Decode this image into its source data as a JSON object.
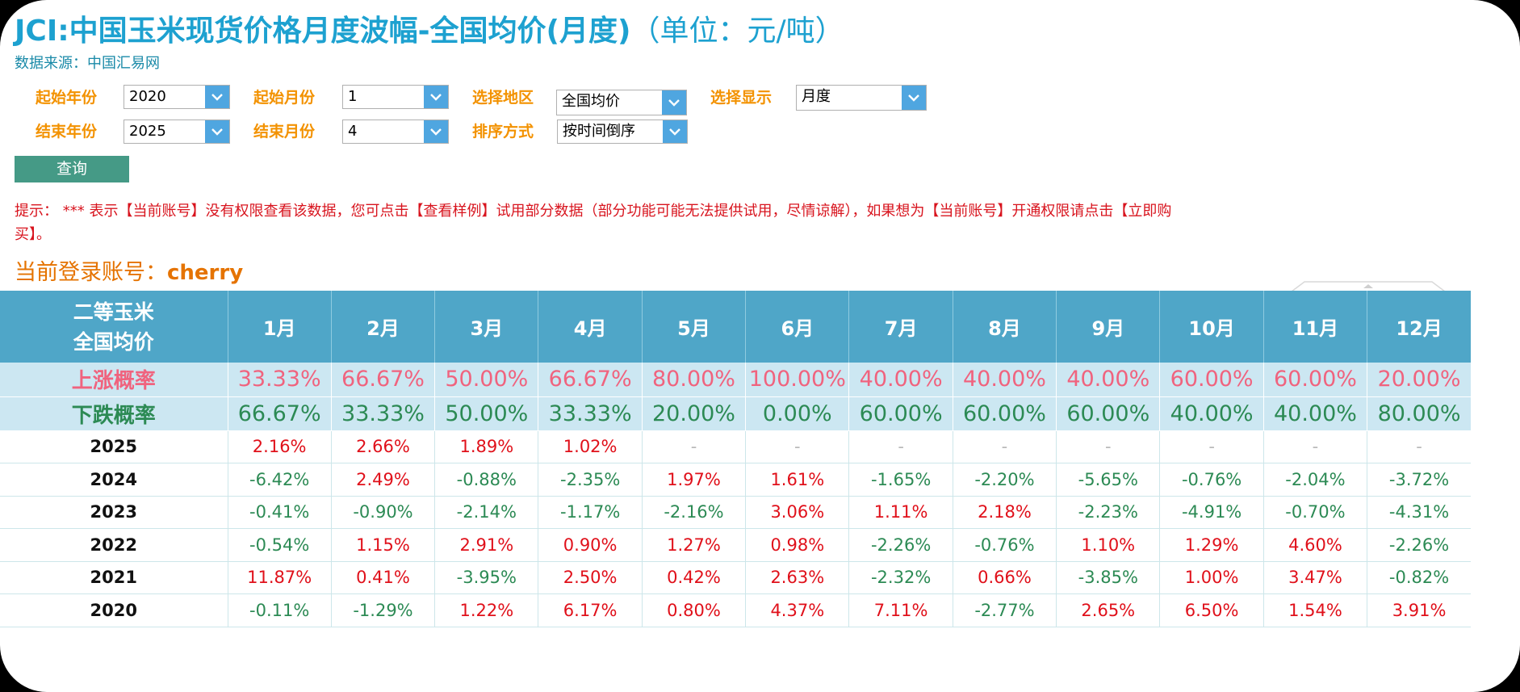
{
  "header": {
    "brand": "JCI:",
    "title": "中国玉米现货价格月度波幅-全国均价(月度)",
    "unit": "（单位：元/吨）",
    "source": "数据来源：中国汇易网"
  },
  "filters": {
    "start_year": {
      "label": "起始年份",
      "value": "2020"
    },
    "start_month": {
      "label": "起始月份",
      "value": "1"
    },
    "region": {
      "label": "选择地区",
      "value": "全国均价"
    },
    "display": {
      "label": "选择显示",
      "value": "月度"
    },
    "end_year": {
      "label": "结束年份",
      "value": "2025"
    },
    "end_month": {
      "label": "结束月份",
      "value": "4"
    },
    "sort": {
      "label": "排序方式",
      "value": "按时间倒序"
    }
  },
  "query_label": "查询",
  "hint": "提示：  *** 表示【当前账号】没有权限查看该数据，您可点击【查看样例】试用部分数据（部分功能可能无法提供试用，尽情谅解），如果想为【当前账号】开通权限请点击【立即购买】。",
  "account": {
    "label": "当前登录账号：",
    "user": "cherry"
  },
  "table": {
    "corner_line1": "二等玉米",
    "corner_line2": "全国均价",
    "months": [
      "1月",
      "2月",
      "3月",
      "4月",
      "5月",
      "6月",
      "7月",
      "8月",
      "9月",
      "10月",
      "11月",
      "12月"
    ],
    "up": {
      "label": "上涨概率",
      "values": [
        "33.33%",
        "66.67%",
        "50.00%",
        "66.67%",
        "80.00%",
        "100.00%",
        "40.00%",
        "40.00%",
        "40.00%",
        "60.00%",
        "60.00%",
        "20.00%"
      ]
    },
    "down": {
      "label": "下跌概率",
      "values": [
        "66.67%",
        "33.33%",
        "50.00%",
        "33.33%",
        "20.00%",
        "0.00%",
        "60.00%",
        "60.00%",
        "60.00%",
        "40.00%",
        "40.00%",
        "80.00%"
      ]
    },
    "rows": [
      {
        "year": "2025",
        "values": [
          "2.16%",
          "2.66%",
          "1.89%",
          "1.02%",
          "-",
          "-",
          "-",
          "-",
          "-",
          "-",
          "-",
          "-"
        ]
      },
      {
        "year": "2024",
        "values": [
          "-6.42%",
          "2.49%",
          "-0.88%",
          "-2.35%",
          "1.97%",
          "1.61%",
          "-1.65%",
          "-2.20%",
          "-5.65%",
          "-0.76%",
          "-2.04%",
          "-3.72%"
        ]
      },
      {
        "year": "2023",
        "values": [
          "-0.41%",
          "-0.90%",
          "-2.14%",
          "-1.17%",
          "-2.16%",
          "3.06%",
          "1.11%",
          "2.18%",
          "-2.23%",
          "-4.91%",
          "-0.70%",
          "-4.31%"
        ]
      },
      {
        "year": "2022",
        "values": [
          "-0.54%",
          "1.15%",
          "2.91%",
          "0.90%",
          "1.27%",
          "0.98%",
          "-2.26%",
          "-0.76%",
          "1.10%",
          "1.29%",
          "4.60%",
          "-2.26%"
        ]
      },
      {
        "year": "2021",
        "values": [
          "11.87%",
          "0.41%",
          "-3.95%",
          "2.50%",
          "0.42%",
          "2.63%",
          "-2.32%",
          "0.66%",
          "-3.85%",
          "1.00%",
          "3.47%",
          "-0.82%"
        ]
      },
      {
        "year": "2020",
        "values": [
          "-0.11%",
          "-1.29%",
          "1.22%",
          "6.17%",
          "0.80%",
          "4.37%",
          "7.11%",
          "-2.77%",
          "2.65%",
          "6.50%",
          "1.54%",
          "3.91%"
        ]
      }
    ]
  },
  "icons": {
    "dropdown": "chevron-down-icon"
  },
  "colors": {
    "accent": "#1da1d0",
    "label": "#f39200",
    "header_bg": "#4fa6c8",
    "positive": "#e0101a",
    "negative": "#2c8a54"
  }
}
